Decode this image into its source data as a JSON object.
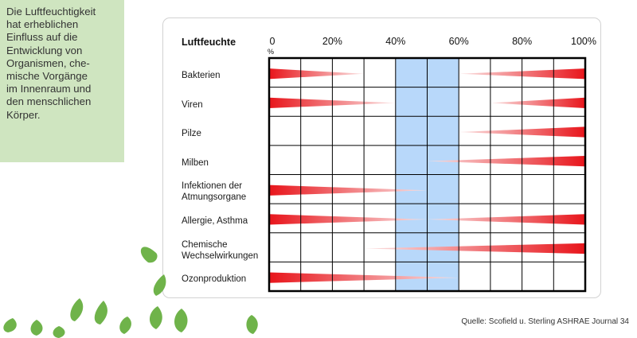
{
  "note": {
    "text": "Die Luftfeuchtigkeit\nhat erheblichen\nEinfluss auf die\nEntwicklung von\nOrganismen, che-\nmische Vorgänge\nim Innenraum und\nden menschlichen\nKörper."
  },
  "chart_data": {
    "type": "range-bars",
    "axis_title": "Luftfeuchte",
    "x_ticks": [
      "0",
      "20%",
      "40%",
      "60%",
      "80%",
      "100%"
    ],
    "x_tick_suffix": "%",
    "x_unit": "% relative humidity",
    "x_range": [
      0,
      100
    ],
    "optimal_band": [
      40,
      60
    ],
    "grid_step": 10,
    "rows": [
      {
        "label": "Bakterien",
        "wedges": [
          {
            "from": 0,
            "to": 30
          },
          {
            "from": 60,
            "to": 100
          }
        ]
      },
      {
        "label": "Viren",
        "wedges": [
          {
            "from": 0,
            "to": 40
          },
          {
            "from": 70,
            "to": 100
          }
        ]
      },
      {
        "label": "Pilze",
        "wedges": [
          {
            "from": 60,
            "to": 100
          }
        ]
      },
      {
        "label": "Milben",
        "wedges": [
          {
            "from": 50,
            "to": 100
          }
        ]
      },
      {
        "label": "Infektionen der\nAtmungsorgane",
        "wedges": [
          {
            "from": 0,
            "to": 50
          }
        ]
      },
      {
        "label": "Allergie, Asthma",
        "wedges": [
          {
            "from": 0,
            "to": 50
          },
          {
            "from": 50,
            "to": 100
          }
        ]
      },
      {
        "label": "Chemische\nWechselwirkungen",
        "wedges": [
          {
            "from": 30,
            "to": 100
          }
        ]
      },
      {
        "label": "Ozonproduktion",
        "wedges": [
          {
            "from": 0,
            "to": 60
          }
        ]
      }
    ]
  },
  "source": "Quelle: Scofield u. Sterling ASHRAE Journal 34",
  "colors": {
    "note_bg": "#cfe5c0",
    "wedge_dark": "#e8151b",
    "wedge_light": "#fbe3e3",
    "band": "#b8d8fa",
    "grid": "#000000",
    "leaf": "#6fb34a"
  }
}
